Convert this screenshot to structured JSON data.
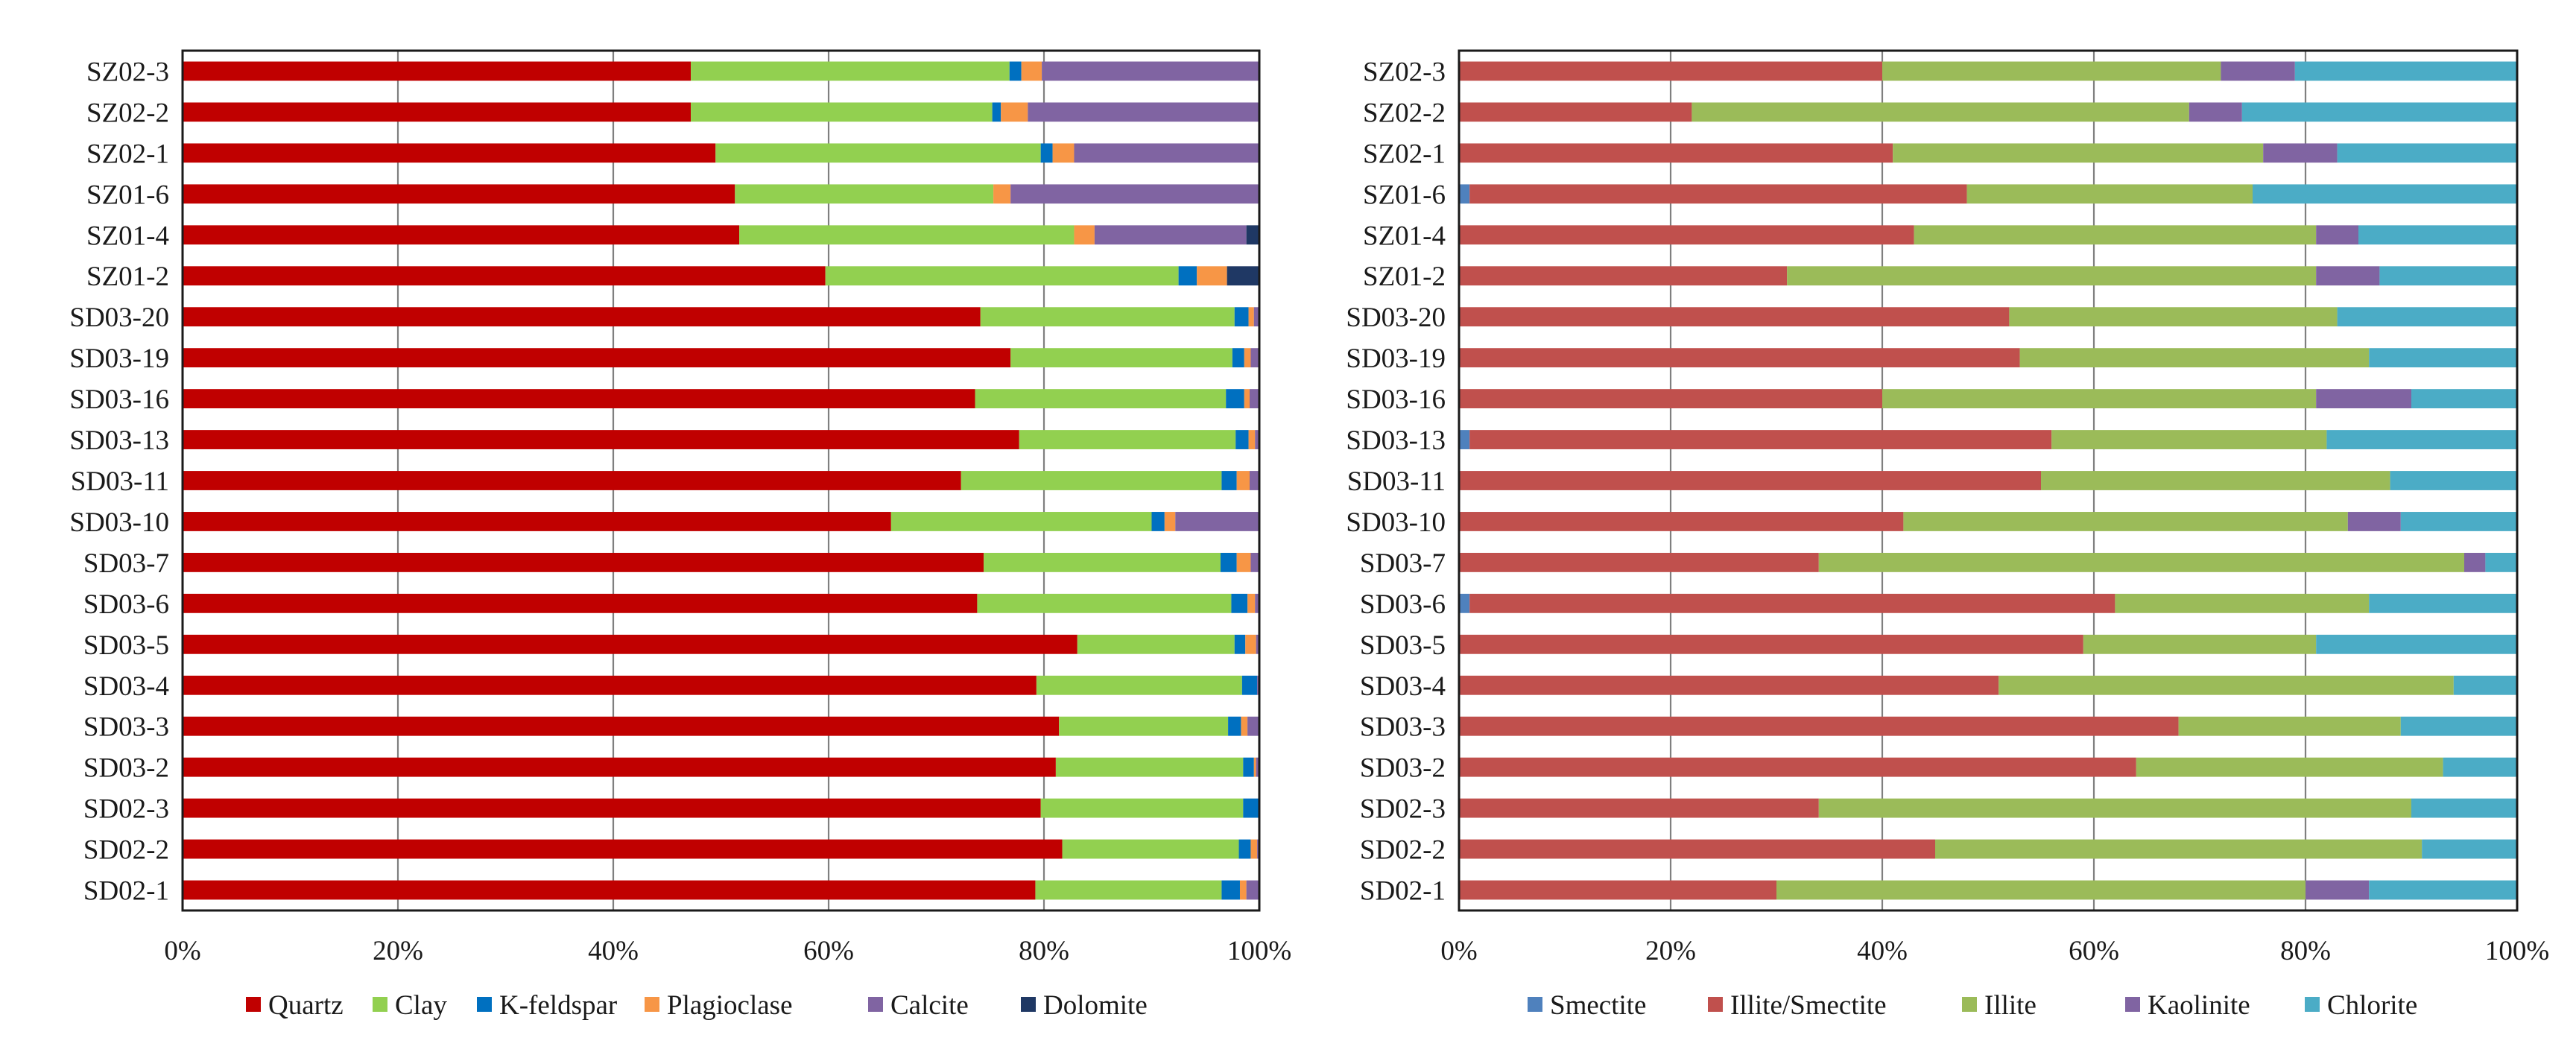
{
  "chart_data": [
    {
      "type": "bar",
      "orientation": "horizontal",
      "stacked": "percent",
      "categories": [
        "SZ02-3",
        "SZ02-2",
        "SZ02-1",
        "SZ01-6",
        "SZ01-4",
        "SZ01-2",
        "SD03-20",
        "SD03-19",
        "SD03-16",
        "SD03-13",
        "SD03-11",
        "SD03-10",
        "SD03-7",
        "SD03-6",
        "SD03-5",
        "SD03-4",
        "SD03-3",
        "SD03-2",
        "SD02-3",
        "SD02-2",
        "SD02-1"
      ],
      "xlim": [
        0,
        100
      ],
      "x_ticks": [
        "0%",
        "20%",
        "40%",
        "60%",
        "80%",
        "100%"
      ],
      "grid": true,
      "legend_position": "bottom",
      "series": [
        {
          "name": "Quartz",
          "color": "#c00000",
          "values": [
            47.2,
            47.2,
            49.5,
            51.3,
            51.7,
            59.7,
            74.1,
            76.9,
            73.6,
            77.7,
            72.3,
            65.8,
            74.4,
            73.8,
            83.1,
            79.3,
            81.4,
            81.1,
            79.7,
            81.7,
            79.2
          ]
        },
        {
          "name": "Clay",
          "color": "#92d050",
          "values": [
            29.6,
            28.0,
            30.2,
            24.0,
            31.1,
            32.8,
            23.6,
            20.6,
            23.3,
            20.1,
            24.2,
            24.2,
            22.0,
            23.6,
            14.6,
            19.1,
            15.7,
            17.4,
            18.8,
            16.4,
            17.3
          ]
        },
        {
          "name": "K-feldspar",
          "color": "#0070c0",
          "values": [
            1.1,
            0.8,
            1.1,
            0.0,
            0.0,
            1.7,
            1.3,
            1.1,
            1.7,
            1.2,
            1.4,
            1.2,
            1.5,
            1.5,
            1.0,
            1.4,
            1.2,
            1.0,
            1.4,
            1.1,
            1.7
          ]
        },
        {
          "name": "Plagioclase",
          "color": "#f79646",
          "values": [
            1.9,
            2.5,
            2.0,
            1.6,
            1.9,
            2.8,
            0.5,
            0.6,
            0.5,
            0.6,
            1.2,
            1.0,
            1.3,
            0.7,
            1.0,
            0.0,
            0.6,
            0.2,
            0.0,
            0.6,
            0.6
          ]
        },
        {
          "name": "Calcite",
          "color": "#8064a2",
          "values": [
            20.2,
            21.5,
            17.2,
            23.1,
            14.1,
            0.0,
            0.5,
            0.8,
            0.9,
            0.4,
            0.9,
            7.8,
            0.8,
            0.4,
            0.3,
            0.2,
            1.1,
            0.3,
            0.1,
            0.2,
            1.2
          ]
        },
        {
          "name": "Dolomite",
          "color": "#1f3864",
          "values": [
            0.0,
            0.0,
            0.0,
            0.0,
            1.2,
            3.0,
            0.0,
            0.0,
            0.0,
            0.0,
            0.0,
            0.0,
            0.0,
            0.0,
            0.0,
            0.0,
            0.0,
            0.0,
            0.0,
            0.0,
            0.0
          ]
        }
      ]
    },
    {
      "type": "bar",
      "orientation": "horizontal",
      "stacked": "percent",
      "categories": [
        "SZ02-3",
        "SZ02-2",
        "SZ02-1",
        "SZ01-6",
        "SZ01-4",
        "SZ01-2",
        "SD03-20",
        "SD03-19",
        "SD03-16",
        "SD03-13",
        "SD03-11",
        "SD03-10",
        "SD03-7",
        "SD03-6",
        "SD03-5",
        "SD03-4",
        "SD03-3",
        "SD03-2",
        "SD02-3",
        "SD02-2",
        "SD02-1"
      ],
      "xlim": [
        0,
        100
      ],
      "x_ticks": [
        "0%",
        "20%",
        "40%",
        "60%",
        "80%",
        "100%"
      ],
      "grid": true,
      "legend_position": "bottom",
      "series": [
        {
          "name": "Smectite",
          "color": "#4f81bd",
          "values": [
            0,
            0,
            0,
            1,
            0,
            0,
            0,
            0,
            0,
            1,
            0,
            0,
            0,
            1,
            0,
            0,
            0,
            0,
            0,
            0,
            0
          ]
        },
        {
          "name": "Illite/Smectite",
          "color": "#c0504d",
          "values": [
            40,
            22,
            41,
            47,
            43,
            31,
            52,
            53,
            40,
            55,
            55,
            42,
            34,
            61,
            59,
            51,
            68,
            64,
            34,
            45,
            30
          ]
        },
        {
          "name": "Illite",
          "color": "#9bbb59",
          "values": [
            32,
            47,
            35,
            27,
            38,
            50,
            31,
            33,
            41,
            26,
            33,
            42,
            61,
            24,
            22,
            43,
            21,
            29,
            56,
            46,
            50
          ]
        },
        {
          "name": "Kaolinite",
          "color": "#8064a2",
          "values": [
            7,
            5,
            7,
            0,
            4,
            6,
            0,
            0,
            9,
            0,
            0,
            5,
            2,
            0,
            0,
            0,
            0,
            0,
            0,
            0,
            6
          ]
        },
        {
          "name": "Chlorite",
          "color": "#4bacc6",
          "values": [
            21,
            26,
            17,
            25,
            15,
            13,
            17,
            14,
            10,
            18,
            12,
            11,
            3,
            14,
            19,
            6,
            11,
            7,
            10,
            9,
            14
          ]
        }
      ]
    }
  ]
}
